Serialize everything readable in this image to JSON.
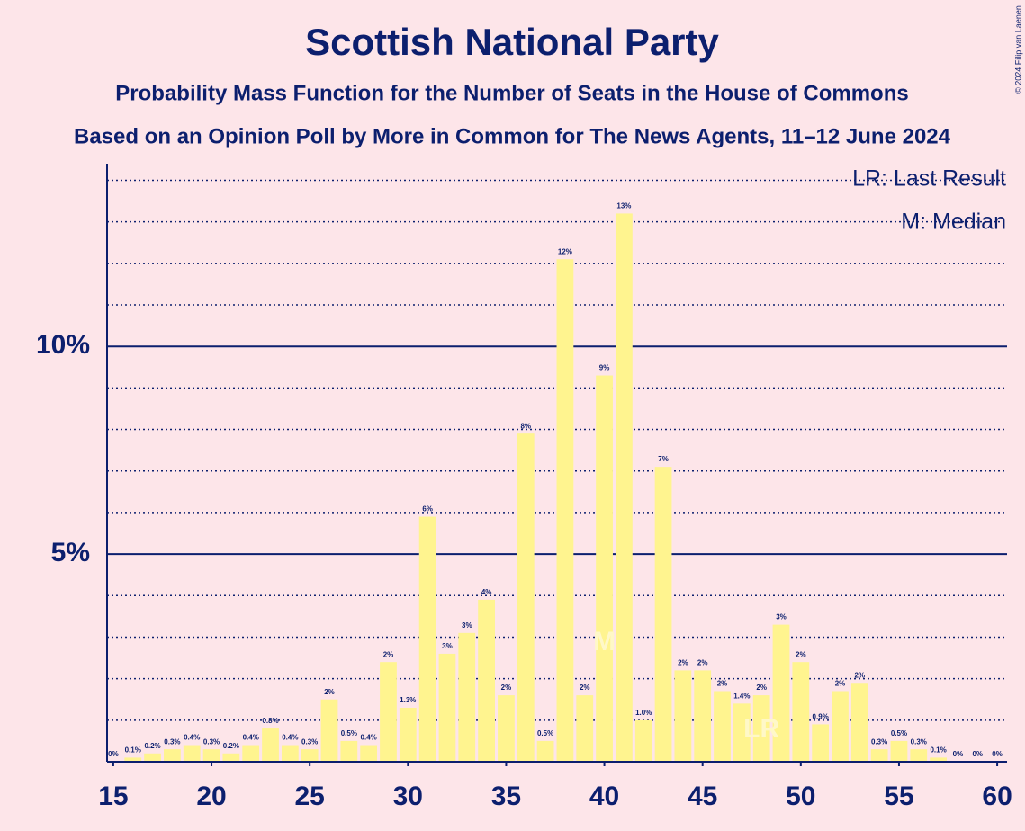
{
  "chart_data": {
    "type": "bar",
    "title": "Scottish National Party",
    "subtitle": "Probability Mass Function for the Number of Seats in the House of Commons",
    "subtitle2": "Based on an Opinion Poll by More in Common for The News Agents, 11–12 June 2024",
    "copyright": "© 2024 Filip van Laenen",
    "legend_lr": "LR: Last Result",
    "legend_m": "M: Median",
    "median": 40,
    "median_label": "M",
    "last_result": 48,
    "last_result_label": "LR",
    "x": [
      15,
      16,
      17,
      18,
      19,
      20,
      21,
      22,
      23,
      24,
      25,
      26,
      27,
      28,
      29,
      30,
      31,
      32,
      33,
      34,
      35,
      36,
      37,
      38,
      39,
      40,
      41,
      42,
      43,
      44,
      45,
      46,
      47,
      48,
      49,
      50,
      51,
      52,
      53,
      54,
      55,
      56,
      57,
      58,
      59,
      60
    ],
    "values": [
      0,
      0.1,
      0.2,
      0.3,
      0.4,
      0.3,
      0.2,
      0.4,
      0.8,
      0.4,
      0.3,
      1.5,
      0.5,
      0.4,
      2.4,
      1.3,
      5.9,
      2.6,
      3.1,
      3.9,
      1.6,
      7.9,
      0.5,
      12.1,
      1.6,
      9.3,
      13.2,
      1.0,
      7.1,
      2.2,
      2.2,
      1.7,
      1.4,
      1.6,
      3.3,
      2.4,
      0.9,
      1.7,
      1.9,
      0.3,
      0.5,
      0.3,
      0.1,
      0,
      0,
      0
    ],
    "value_labels": [
      "0%",
      "0.1%",
      "0.2%",
      "0.3%",
      "0.4%",
      "0.3%",
      "0.2%",
      "0.4%",
      "0.8%",
      "0.4%",
      "0.3%",
      "2%",
      "0.5%",
      "0.4%",
      "2%",
      "1.3%",
      "6%",
      "3%",
      "3%",
      "4%",
      "2%",
      "8%",
      "0.5%",
      "12%",
      "2%",
      "9%",
      "13%",
      "1.0%",
      "7%",
      "2%",
      "2%",
      "2%",
      "1.4%",
      "2%",
      "3%",
      "2%",
      "0.9%",
      "2%",
      "2%",
      "0.3%",
      "0.5%",
      "0.3%",
      "0.1%",
      "0%",
      "0%",
      "0%"
    ],
    "color": "#fff48f",
    "xlim": [
      14.5,
      60.5
    ],
    "xticks": [
      15,
      20,
      25,
      30,
      35,
      40,
      45,
      50,
      55,
      60
    ],
    "ylim": [
      0,
      14.4
    ],
    "yticks": [
      {
        "value": 5,
        "label": "5%"
      },
      {
        "value": 10,
        "label": "10%"
      }
    ],
    "minor_yticks": [
      1,
      2,
      3,
      4,
      6,
      7,
      8,
      9,
      11,
      12,
      13,
      14
    ],
    "grid": true
  }
}
